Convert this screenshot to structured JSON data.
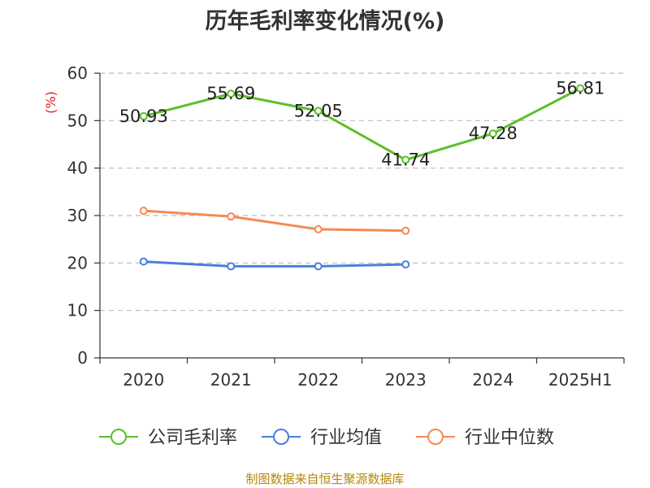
{
  "page_title": "历年毛利率变化情况(%)",
  "source": "制图数据来自恒生聚源数据库",
  "chart_data": {
    "type": "line",
    "title": "历年毛利率变化情况(%)",
    "ylabel": "(%)",
    "xlabel": "",
    "categories": [
      "2020",
      "2021",
      "2022",
      "2023",
      "2024",
      "2025H1"
    ],
    "ylim": [
      0,
      60
    ],
    "yticks": [
      0,
      10,
      20,
      30,
      40,
      50,
      60
    ],
    "grid": "horizontal-dashed",
    "legend_position": "bottom",
    "series": [
      {
        "name": "公司毛利率",
        "color": "#5cbf28",
        "values": [
          50.93,
          55.69,
          52.05,
          41.74,
          47.28,
          56.81
        ],
        "labels": [
          "50.93",
          "55.69",
          "52.05",
          "41.74",
          "47.28",
          "56.81"
        ]
      },
      {
        "name": "行业均值",
        "color": "#4a7fdb",
        "values": [
          20.3,
          19.3,
          19.3,
          19.7,
          null,
          null
        ]
      },
      {
        "name": "行业中位数",
        "color": "#f58a52",
        "values": [
          31.0,
          29.8,
          27.1,
          26.8,
          null,
          null
        ]
      }
    ],
    "axis_color": "#333333",
    "grid_color": "#bbbbbb",
    "ylabel_color": "#e02020"
  }
}
